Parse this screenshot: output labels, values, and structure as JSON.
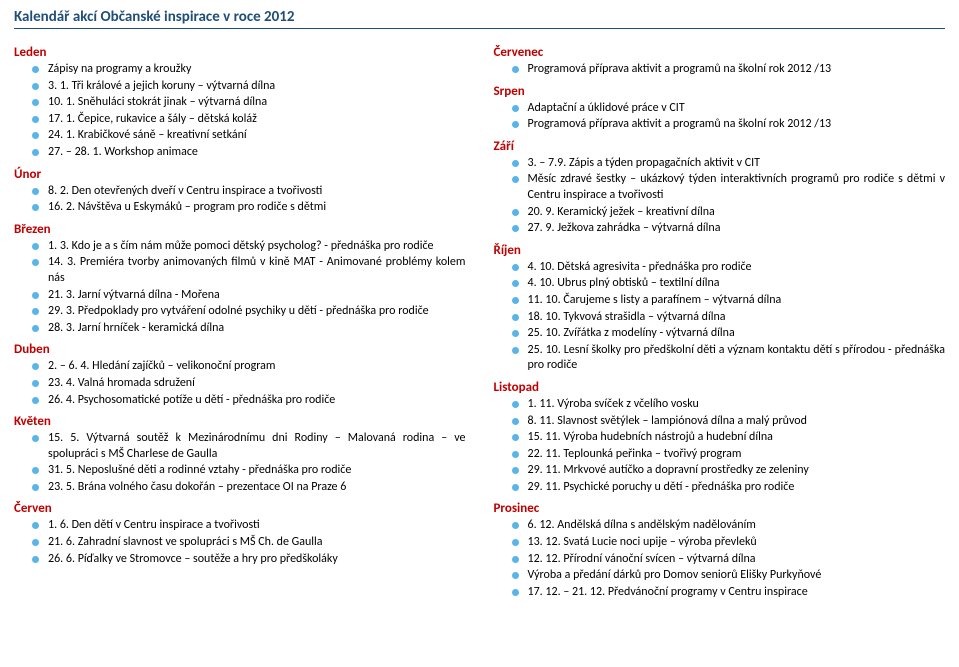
{
  "title": "Kalendář akcí Občanské inspirace v roce 2012",
  "left": [
    {
      "month": "Leden",
      "items": [
        "Zápisy na programy a kroužky",
        "3. 1. Tři králové a jejich koruny – výtvarná dílna",
        "10. 1. Sněhuláci stokrát jinak – výtvarná dílna",
        "17. 1. Čepice, rukavice a šály – dětská koláž",
        "24. 1. Krabičkové sáně – kreativní setkání",
        "27. – 28. 1. Workshop animace"
      ]
    },
    {
      "month": "Únor",
      "items": [
        "8. 2. Den otevřených dveří v Centru inspirace a tvořivosti",
        "16. 2. Návštěva u Eskymáků – program pro rodiče s dětmi"
      ]
    },
    {
      "month": "Březen",
      "items": [
        "1. 3. Kdo je a s čím nám může pomoci dětský psycholog? - přednáška pro rodiče",
        "14. 3. Premiéra tvorby animovaných filmů v kině MAT - Animované problémy kolem nás",
        "21. 3. Jarní výtvarná dílna - Mořena",
        "29. 3. Předpoklady pro vytváření odolné psychiky u dětí - přednáška pro rodiče",
        "28. 3. Jarní hrníček - keramická dílna"
      ]
    },
    {
      "month": "Duben",
      "items": [
        "2. – 6. 4. Hledání zajíčků – velikonoční program",
        "23. 4. Valná hromada sdružení",
        "26. 4. Psychosomatické potíže u dětí - přednáška pro rodiče"
      ]
    },
    {
      "month": "Květen",
      "items": [
        "15. 5. Výtvarná soutěž k Mezinárodnímu dni Rodiny – Malovaná rodina – ve spolupráci s MŠ Charlese de Gaulla",
        "31. 5. Neposlušné děti a rodinné vztahy - přednáška pro rodiče",
        "23. 5. Brána volného času dokořán – prezentace OI na Praze 6"
      ]
    },
    {
      "month": "Červen",
      "items": [
        "1. 6. Den dětí v Centru inspirace a tvořivosti",
        "21. 6. Zahradní slavnost ve spolupráci s MŠ Ch. de Gaulla",
        "26. 6. Píďalky ve Stromovce – soutěže a hry pro předškoláky"
      ]
    }
  ],
  "right": [
    {
      "month": "Červenec",
      "items": [
        "Programová příprava aktivit a programů na školní rok 2012 /13"
      ]
    },
    {
      "month": "Srpen",
      "items": [
        "Adaptační a úklidové práce v CIT",
        "Programová příprava aktivit a programů na školní rok 2012 /13"
      ]
    },
    {
      "month": "Září",
      "items": [
        "3. – 7.9. Zápis a týden propagačních aktivit v CIT",
        "Měsíc zdravé šestky – ukázkový týden interaktivních programů pro rodiče s dětmi v Centru inspirace a tvořivosti",
        "20. 9. Keramický ježek – kreativní dílna",
        "27. 9. Ježkova zahrádka – výtvarná dílna"
      ]
    },
    {
      "month": "Říjen",
      "items": [
        "4. 10. Dětská agresivita - přednáška pro rodiče",
        "4. 10. Ubrus plný obtisků – textilní dílna",
        "11. 10. Čarujeme s listy a parafínem – výtvarná dílna",
        "18. 10. Tykvová strašidla – výtvarná dílna",
        "25. 10. Zvířátka z modelíny - výtvarná dílna",
        "25. 10. Lesní školky pro předškolní děti a význam kontaktu dětí s přírodou - přednáška pro rodiče"
      ]
    },
    {
      "month": "Listopad",
      "items": [
        "1. 11. Výroba svíček z včelího vosku",
        "8. 11. Slavnost světýlek – lampiónová dílna a malý průvod",
        "15. 11. Výroba hudebních nástrojů a hudební dílna",
        "22. 11. Teplounká peřinka – tvořivý program",
        "29. 11. Mrkvové autíčko a dopravní prostředky ze zeleniny",
        "29. 11. Psychické poruchy u dětí - přednáška pro rodiče"
      ]
    },
    {
      "month": "Prosinec",
      "items": [
        "6. 12. Andělská dílna s andělským nadělováním",
        "13. 12. Svatá Lucie noci upije – výroba převleků",
        "12. 12. Přírodní vánoční svícen – výtvarná dílna",
        "Výroba a předání dárků pro Domov seniorů Elišky Purkyňové",
        "17. 12. – 21. 12. Předvánoční programy v Centru inspirace"
      ]
    }
  ]
}
